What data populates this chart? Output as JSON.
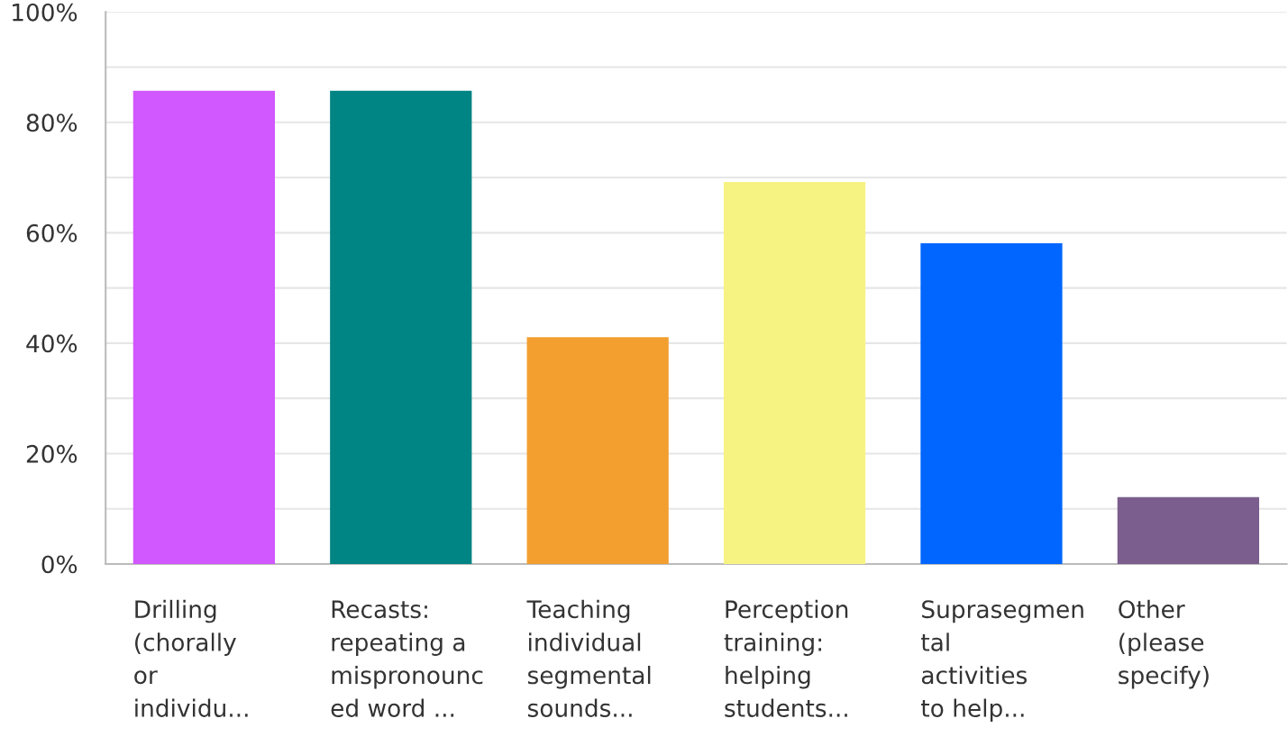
{
  "chart_data": {
    "type": "bar",
    "categories": [
      "Drilling\n(chorally\nor\nindividu...",
      "Recasts:\nrepeating a\nmispronounc\ned word ...",
      "Teaching\nindividual\nsegmental\nsounds...",
      "Perception\ntraining:\nhelping\nstudents...",
      "Suprasegmen\ntal\nactivities\nto help...",
      "Other\n(please\nspecify)"
    ],
    "values": [
      85.7,
      85.7,
      41.1,
      69.2,
      58.1,
      12.1
    ],
    "colors": [
      "#d157fe",
      "#008484",
      "#f29f30",
      "#f7f383",
      "#0066ff",
      "#7b5e8d"
    ],
    "ylim": [
      0,
      100
    ],
    "yticks": [
      {
        "value": 0,
        "label": "0%"
      },
      {
        "value": 10,
        "label": null
      },
      {
        "value": 20,
        "label": "20%"
      },
      {
        "value": 30,
        "label": null
      },
      {
        "value": 40,
        "label": "40%"
      },
      {
        "value": 50,
        "label": null
      },
      {
        "value": 60,
        "label": "60%"
      },
      {
        "value": 70,
        "label": null
      },
      {
        "value": 80,
        "label": "80%"
      },
      {
        "value": 90,
        "label": null
      },
      {
        "value": 100,
        "label": "100%"
      }
    ],
    "grid": "y"
  }
}
